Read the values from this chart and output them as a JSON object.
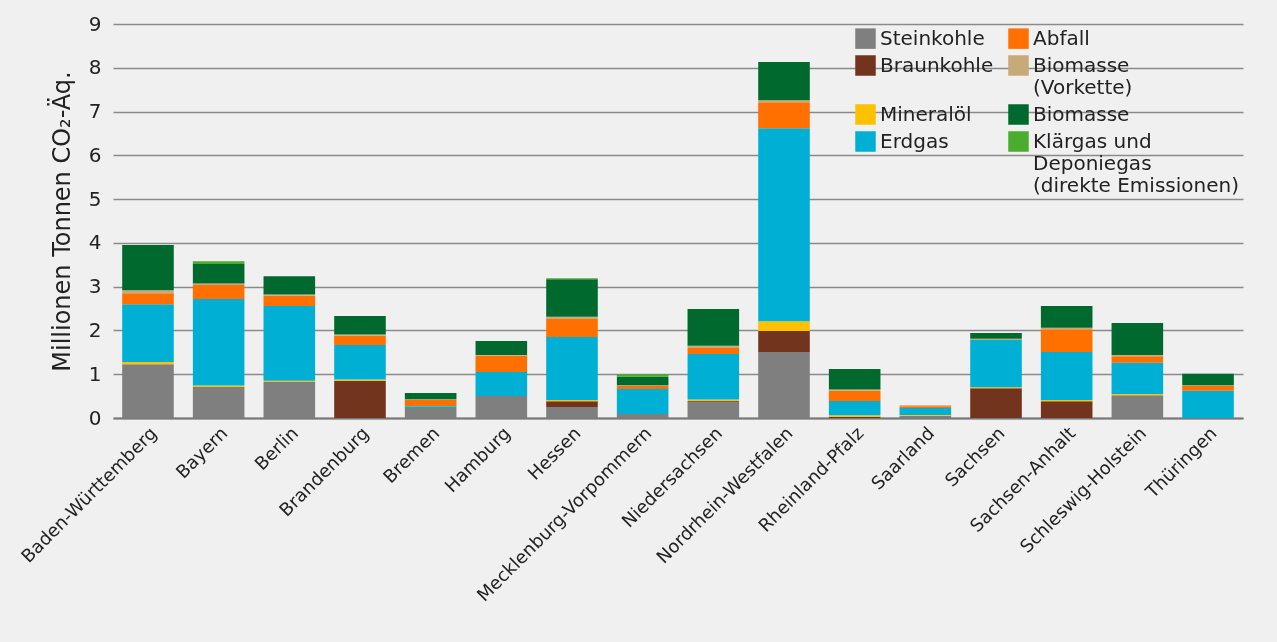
{
  "chart_data": {
    "type": "bar",
    "stacked": true,
    "ylabel": "Millionen Tonnen CO₂-Äq.",
    "categories": [
      "Baden-Württemberg",
      "Bayern",
      "Berlin",
      "Brandenburg",
      "Bremen",
      "Hamburg",
      "Hessen",
      "Mecklenburg-Vorpommern",
      "Niedersachsen",
      "Nordrhein-Westfalen",
      "Rheinland-Pfalz",
      "Saarland",
      "Sachsen",
      "Sachsen-Anhalt",
      "Schleswig-Holstein",
      "Thüringen"
    ],
    "series": [
      {
        "name": "Steinkohle",
        "color": "#7f7f7f",
        "values": [
          1.23,
          0.71,
          0.82,
          null,
          0.23,
          0.5,
          0.25,
          0.09,
          0.37,
          1.51,
          null,
          0.05,
          null,
          0,
          0.52,
          null
        ]
      },
      {
        "name": "Braunkohle",
        "color": "#73341e",
        "values": [
          0,
          0,
          0,
          0.85,
          0,
          0,
          0.13,
          0,
          0.02,
          0.48,
          0.03,
          0,
          0.68,
          0.38,
          0,
          0
        ]
      },
      {
        "name": "Mineralöl",
        "color": "#ffc000",
        "values": [
          0.05,
          0.03,
          0.03,
          0.03,
          0,
          0,
          0.03,
          0,
          0.03,
          0.22,
          0.03,
          0.02,
          0.02,
          0.03,
          0.03,
          0
        ]
      },
      {
        "name": "Erdgas",
        "color": "#00b0d4",
        "values": [
          1.32,
          1.98,
          1.71,
          0.79,
          0.04,
          0.55,
          1.44,
          0.57,
          1.04,
          4.41,
          0.33,
          0.16,
          1.08,
          1.1,
          0.71,
          0.62
        ]
      },
      {
        "name": "Abfall",
        "color": "#ff7000",
        "values": [
          0.25,
          0.32,
          0.23,
          0.21,
          0.14,
          0.37,
          0.41,
          0.07,
          0.14,
          0.59,
          0.23,
          0.04,
          0,
          0.52,
          0.15,
          0.11
        ]
      },
      {
        "name": "Biomasse\n(Vorkette)",
        "color": "#c8aa78",
        "values": [
          0.07,
          0.03,
          0.03,
          0.03,
          0.02,
          0.02,
          0.05,
          0.02,
          0.05,
          0.05,
          0.03,
          0.02,
          0.03,
          0.03,
          0.03,
          0.02
        ]
      },
      {
        "name": "Biomasse",
        "color": "#006a2e",
        "values": [
          1.03,
          0.45,
          0.42,
          0.42,
          0.14,
          0.32,
          0.86,
          0.19,
          0.84,
          0.87,
          0.47,
          0,
          0.13,
          0.5,
          0.73,
          0.26
        ]
      },
      {
        "name": "Klärgas und\nDeponiegas\n(direkte Emissionen)",
        "color": "#4aad2e",
        "values": [
          0,
          0.06,
          0,
          0,
          0,
          0,
          0.02,
          0.06,
          0,
          0,
          0,
          0,
          0,
          0,
          0,
          0
        ]
      }
    ],
    "ylim": [
      0,
      9
    ],
    "yticks": [
      0,
      1,
      2,
      3,
      4,
      5,
      6,
      7,
      8,
      9
    ],
    "grid": "y",
    "legend": "top right"
  }
}
